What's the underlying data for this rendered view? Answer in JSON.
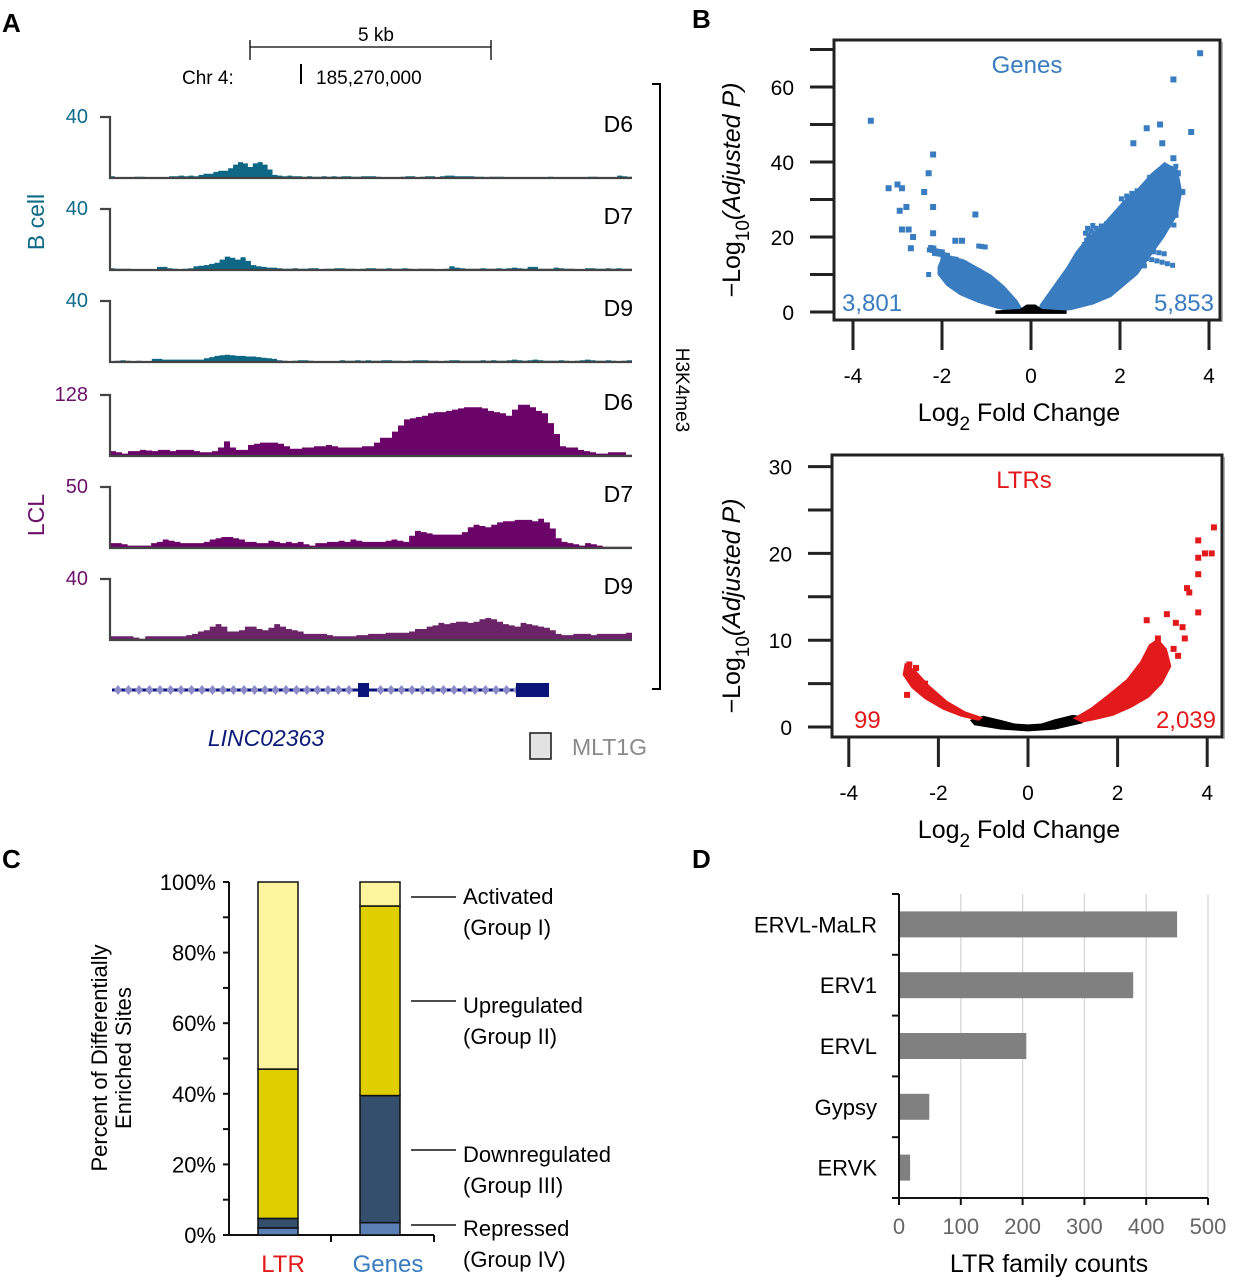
{
  "panels": {
    "A": {
      "letter": "A",
      "scale_bar_label": "5 kb",
      "chrom_label": "Chr 4:",
      "position_label": "185,270,000",
      "mark_label": "H3K4me3",
      "gene_name": "LINC02363",
      "repeat_legend_label": "MLT1G",
      "groups": [
        {
          "label": "B cell",
          "color": "#0e6a87"
        },
        {
          "label": "LCL",
          "color": "#6b0f6b"
        }
      ],
      "tracks": [
        {
          "group": 0,
          "day": "D6",
          "max_label": "40",
          "color": "#0e6784",
          "profile": [
            3,
            1,
            1,
            1,
            1,
            2,
            2,
            1,
            1,
            1,
            1,
            1,
            3,
            3,
            4,
            3,
            4,
            3,
            5,
            7,
            7,
            10,
            12,
            12,
            16,
            22,
            26,
            24,
            18,
            24,
            26,
            22,
            14,
            5,
            4,
            3,
            4,
            3,
            3,
            2,
            3,
            2,
            2,
            3,
            2,
            3,
            2,
            3,
            3,
            2,
            2,
            3,
            3,
            3,
            2,
            1,
            1,
            1,
            1,
            2,
            3,
            3,
            1,
            2,
            3,
            3,
            1,
            3,
            4,
            4,
            3,
            3,
            3,
            3,
            2,
            2,
            1,
            2,
            2,
            2,
            1,
            1,
            1,
            1,
            1,
            1,
            1,
            1,
            1,
            2,
            1,
            1,
            1,
            1,
            1,
            1,
            1,
            2,
            2,
            1,
            1,
            1,
            1,
            4,
            3,
            2
          ]
        },
        {
          "group": 0,
          "day": "D7",
          "max_label": "40",
          "color": "#0e6784",
          "profile": [
            3,
            2,
            2,
            2,
            1,
            1,
            1,
            1,
            1,
            5,
            5,
            3,
            2,
            1,
            2,
            3,
            6,
            7,
            8,
            10,
            12,
            17,
            22,
            20,
            17,
            21,
            15,
            8,
            6,
            5,
            4,
            4,
            3,
            2,
            2,
            3,
            2,
            2,
            3,
            3,
            1,
            2,
            2,
            3,
            3,
            2,
            2,
            1,
            2,
            3,
            3,
            2,
            2,
            3,
            2,
            2,
            3,
            2,
            1,
            2,
            2,
            2,
            1,
            1,
            2,
            6,
            4,
            3,
            2,
            2,
            2,
            3,
            2,
            2,
            3,
            2,
            3,
            4,
            3,
            2,
            5,
            5,
            2,
            2,
            2,
            4,
            3,
            2,
            2,
            1,
            1,
            3,
            3,
            2,
            2,
            3,
            2,
            3,
            2,
            2
          ]
        },
        {
          "group": 0,
          "day": "D9",
          "max_label": "40",
          "color": "#0e6784",
          "profile": [
            1,
            2,
            3,
            2,
            1,
            2,
            1,
            1,
            5,
            5,
            4,
            4,
            4,
            4,
            4,
            4,
            4,
            4,
            6,
            8,
            10,
            11,
            12,
            11,
            10,
            10,
            9,
            9,
            8,
            7,
            6,
            5,
            3,
            2,
            1,
            2,
            3,
            3,
            2,
            1,
            0,
            1,
            1,
            1,
            3,
            2,
            2,
            3,
            2,
            3,
            2,
            2,
            3,
            3,
            2,
            2,
            1,
            2,
            3,
            3,
            3,
            2,
            2,
            1,
            2,
            3,
            3,
            2,
            2,
            2,
            2,
            3,
            2,
            3,
            2,
            2,
            3,
            4,
            3,
            2,
            3,
            4,
            3,
            2,
            2,
            2,
            3,
            2,
            1,
            2,
            3,
            4,
            3,
            2,
            2,
            3,
            2,
            1,
            2,
            3
          ]
        },
        {
          "group": 1,
          "day": "D6",
          "max_label": "128",
          "color": "#6b0468",
          "profile": [
            8,
            6,
            4,
            8,
            8,
            10,
            9,
            8,
            10,
            10,
            8,
            10,
            10,
            10,
            8,
            6,
            6,
            8,
            14,
            24,
            14,
            10,
            10,
            18,
            20,
            22,
            22,
            22,
            20,
            16,
            12,
            12,
            14,
            14,
            16,
            16,
            18,
            16,
            14,
            14,
            14,
            14,
            16,
            16,
            22,
            30,
            30,
            40,
            50,
            60,
            62,
            64,
            66,
            70,
            72,
            72,
            74,
            76,
            78,
            80,
            80,
            80,
            78,
            74,
            72,
            70,
            66,
            76,
            84,
            84,
            80,
            74,
            70,
            54,
            36,
            16,
            14,
            14,
            10,
            8,
            6,
            4,
            4,
            6,
            6,
            6,
            2
          ]
        },
        {
          "group": 1,
          "day": "D7",
          "max_label": "50",
          "color": "#6b0468",
          "profile": [
            8,
            8,
            6,
            4,
            4,
            4,
            4,
            8,
            10,
            14,
            12,
            10,
            8,
            8,
            8,
            8,
            10,
            14,
            16,
            18,
            18,
            16,
            14,
            10,
            10,
            8,
            8,
            12,
            10,
            8,
            10,
            8,
            10,
            6,
            4,
            8,
            8,
            10,
            10,
            12,
            10,
            14,
            12,
            10,
            10,
            10,
            10,
            12,
            14,
            12,
            10,
            20,
            28,
            26,
            24,
            22,
            22,
            22,
            22,
            22,
            26,
            34,
            38,
            36,
            34,
            38,
            42,
            44,
            44,
            46,
            46,
            46,
            44,
            48,
            42,
            32,
            16,
            10,
            8,
            6,
            4,
            8,
            6,
            4,
            2,
            2,
            2,
            2,
            2
          ]
        },
        {
          "group": 1,
          "day": "D9",
          "max_label": "40",
          "color": "#6b2468",
          "profile": [
            6,
            6,
            6,
            6,
            4,
            2,
            6,
            6,
            6,
            6,
            6,
            6,
            6,
            8,
            10,
            14,
            16,
            22,
            26,
            22,
            14,
            14,
            16,
            22,
            22,
            18,
            16,
            20,
            26,
            22,
            18,
            16,
            14,
            10,
            10,
            10,
            10,
            8,
            6,
            6,
            6,
            6,
            8,
            8,
            10,
            10,
            10,
            12,
            12,
            12,
            12,
            14,
            18,
            18,
            22,
            24,
            28,
            26,
            28,
            30,
            30,
            28,
            30,
            34,
            36,
            34,
            30,
            26,
            24,
            22,
            28,
            26,
            24,
            22,
            20,
            16,
            10,
            8,
            8,
            10,
            10,
            10,
            8,
            10,
            10,
            10,
            10,
            10,
            12
          ]
        }
      ]
    },
    "B": {
      "letter": "B",
      "plots": [
        {
          "title": "Genes",
          "color": "#3a7cc0",
          "ylabel_prefix": "−Log",
          "ylabel_sub": "10",
          "ylabel_main": "(Adjusted P)",
          "xlabel_prefix": "Log",
          "xlabel_sub": "2",
          "xlabel_main": " Fold Change",
          "down_count": "3,801",
          "up_count": "5,853",
          "xlim": [
            -4.3,
            4.3
          ],
          "ylim": [
            -2,
            72
          ],
          "xticks": [
            -4,
            -2,
            0,
            2,
            4
          ],
          "yticks": [
            0,
            20,
            40,
            60
          ],
          "yminor": [
            10,
            30,
            50,
            70
          ]
        },
        {
          "title": "LTRs",
          "color": "#e31a1c",
          "ylabel_prefix": "−Log",
          "ylabel_sub": "10",
          "ylabel_main": "(Adjusted P)",
          "xlabel_prefix": "Log",
          "xlabel_sub": "2",
          "xlabel_main": " Fold Change",
          "down_count": "99",
          "up_count": "2,039",
          "xlim": [
            -4.3,
            4.3
          ],
          "ylim": [
            -1,
            31
          ],
          "xticks": [
            -4,
            -2,
            0,
            2,
            4
          ],
          "yticks": [
            0,
            10,
            20,
            30
          ],
          "yminor": [
            5,
            15,
            25
          ]
        }
      ]
    },
    "C": {
      "letter": "C",
      "ylabel_line1": "Percent of Differentially",
      "ylabel_line2": "Enriched Sites",
      "legend": [
        {
          "line1": "Activated",
          "line2": "(Group I)"
        },
        {
          "line1": "Upregulated",
          "line2": "(Group II)"
        },
        {
          "line1": "Downregulated",
          "line2": "(Group III)"
        },
        {
          "line1": "Repressed",
          "line2": "(Group IV)"
        }
      ]
    },
    "D": {
      "letter": "D"
    }
  },
  "chart_data": [
    {
      "type": "area",
      "title": "H3K4me3 ChIP-seq signal tracks at LINC02363 locus",
      "region": "Chr 4: 185,270,000",
      "scale": "5 kb",
      "series": [
        {
          "name": "B cell D6",
          "max": 40
        },
        {
          "name": "B cell D7",
          "max": 40
        },
        {
          "name": "B cell D9",
          "max": 40
        },
        {
          "name": "LCL D6",
          "max": 128
        },
        {
          "name": "LCL D7",
          "max": 50
        },
        {
          "name": "LCL D9",
          "max": 40
        }
      ],
      "annotations": [
        "LINC02363",
        "MLT1G",
        "H3K4me3"
      ]
    },
    {
      "type": "scatter",
      "title": "Genes",
      "xlabel": "Log2 Fold Change",
      "ylabel": "-Log10(Adjusted P)",
      "xlim": [
        -4.3,
        4.3
      ],
      "ylim": [
        0,
        72
      ],
      "xticks": [
        "-4",
        "-2",
        "0",
        "2",
        "4"
      ],
      "yticks": [
        "0",
        "20",
        "40",
        "60"
      ],
      "annotations": {
        "down_count": "3,801",
        "up_count": "5,853"
      },
      "highlight_points": [
        [
          -3.6,
          51
        ],
        [
          -3.2,
          33
        ],
        [
          -3.0,
          34
        ],
        [
          -2.9,
          33
        ],
        [
          -2.95,
          27
        ],
        [
          -2.8,
          28
        ],
        [
          -2.9,
          22
        ],
        [
          -2.75,
          22
        ],
        [
          -2.65,
          20
        ],
        [
          -2.7,
          17
        ],
        [
          -2.2,
          42
        ],
        [
          -2.3,
          37
        ],
        [
          -2.4,
          32
        ],
        [
          -2.2,
          28
        ],
        [
          -2.2,
          21
        ],
        [
          -1.7,
          19
        ],
        [
          -1.55,
          19
        ],
        [
          -1.25,
          26
        ],
        [
          3.8,
          69
        ],
        [
          3.2,
          62
        ],
        [
          3.6,
          48
        ],
        [
          2.9,
          50
        ],
        [
          2.6,
          49
        ],
        [
          2.3,
          45
        ],
        [
          2.95,
          45
        ],
        [
          3.2,
          41
        ],
        [
          3.3,
          37
        ],
        [
          3.4,
          32
        ],
        [
          3.25,
          29
        ]
      ]
    },
    {
      "type": "scatter",
      "title": "LTRs",
      "xlabel": "Log2 Fold Change",
      "ylabel": "-Log10(Adjusted P)",
      "xlim": [
        -4.3,
        4.3
      ],
      "ylim": [
        0,
        31
      ],
      "xticks": [
        "-4",
        "-2",
        "0",
        "2",
        "4"
      ],
      "yticks": [
        "0",
        "10",
        "20",
        "30"
      ],
      "annotations": {
        "down_count": "99",
        "up_count": "2,039"
      },
      "highlight_points": [
        [
          4.15,
          23
        ],
        [
          3.8,
          21.5
        ],
        [
          3.95,
          20
        ],
        [
          4.1,
          20
        ],
        [
          3.8,
          19.5
        ],
        [
          3.8,
          17.6
        ],
        [
          3.55,
          16
        ],
        [
          3.6,
          15.5
        ],
        [
          3.8,
          13.2
        ],
        [
          2.65,
          12.3
        ],
        [
          3.1,
          13
        ],
        [
          3.3,
          12
        ],
        [
          3.45,
          11.5
        ],
        [
          3.5,
          10.2
        ],
        [
          2.9,
          10.2
        ],
        [
          3.25,
          9
        ],
        [
          3.35,
          8.2
        ],
        [
          -2.65,
          7.2
        ],
        [
          -2.5,
          6.8
        ],
        [
          -2.7,
          3.7
        ],
        [
          -2.3,
          5
        ]
      ]
    },
    {
      "type": "bar",
      "title": "",
      "stacked": true,
      "categories": [
        "LTR",
        "Genes"
      ],
      "category_colors": [
        "#e31a1c",
        "#3a7cc0"
      ],
      "ylabel": "Percent of Differentially Enriched Sites",
      "ylim": [
        0,
        100
      ],
      "yticks": [
        "0%",
        "20%",
        "40%",
        "60%",
        "80%",
        "100%"
      ],
      "series": [
        {
          "name": "Repressed (Group IV)",
          "color": "#5b80b5",
          "values": [
            2.0,
            3.5
          ]
        },
        {
          "name": "Downregulated (Group III)",
          "color": "#344f6c",
          "values": [
            2.7,
            36.0
          ]
        },
        {
          "name": "Upregulated (Group II)",
          "color": "#dfce00",
          "values": [
            42.3,
            53.7
          ]
        },
        {
          "name": "Activated (Group I)",
          "color": "#fdf59d",
          "values": [
            53.0,
            6.8
          ]
        }
      ]
    },
    {
      "type": "bar",
      "orientation": "horizontal",
      "title": "",
      "categories": [
        "ERVL-MaLR",
        "ERV1",
        "ERVL",
        "Gypsy",
        "ERVK"
      ],
      "values": [
        450,
        379,
        206,
        49,
        18
      ],
      "xlabel": "LTR family counts",
      "ylabel": "",
      "xlim": [
        0,
        500
      ],
      "xticks": [
        "0",
        "100",
        "200",
        "300",
        "400",
        "500"
      ],
      "grid": true,
      "bar_color": "#808080"
    }
  ]
}
